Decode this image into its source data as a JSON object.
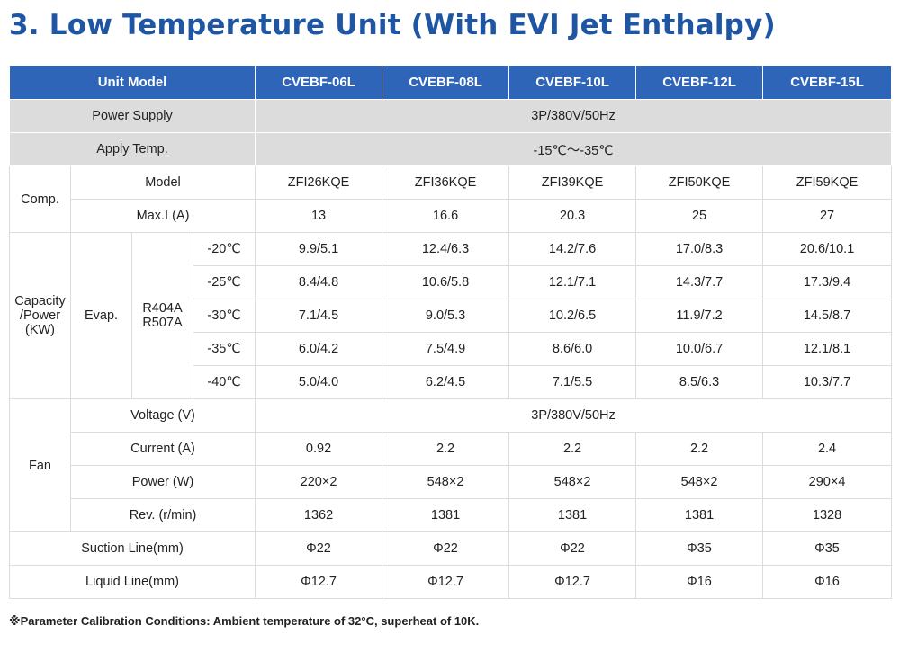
{
  "title": "3. Low Temperature Unit (With EVI Jet Enthalpy)",
  "header": {
    "unit_model": "Unit Model",
    "models": [
      "CVEBF-06L",
      "CVEBF-08L",
      "CVEBF-10L",
      "CVEBF-12L",
      "CVEBF-15L"
    ]
  },
  "power_supply": {
    "label": "Power Supply",
    "value": "3P/380V/50Hz"
  },
  "apply_temp": {
    "label": "Apply Temp.",
    "value": "-15℃～-35℃"
  },
  "comp": {
    "label": "Comp.",
    "model": {
      "label": "Model",
      "values": [
        "ZFI26KQE",
        "ZFI36KQE",
        "ZFI39KQE",
        "ZFI50KQE",
        "ZFI59KQE"
      ]
    },
    "max_i": {
      "label": "Max.I (A)",
      "values": [
        "13",
        "16.6",
        "20.3",
        "25",
        "27"
      ]
    }
  },
  "capacity": {
    "label_line1": "Capacity",
    "label_line2": "/Power",
    "label_line3": "(KW)",
    "evap_label": "Evap.",
    "refrigerant_line1": "R404A",
    "refrigerant_line2": "R507A",
    "rows": [
      {
        "temp": "-20℃",
        "values": [
          "9.9/5.1",
          "12.4/6.3",
          "14.2/7.6",
          "17.0/8.3",
          "20.6/10.1"
        ]
      },
      {
        "temp": "-25℃",
        "values": [
          "8.4/4.8",
          "10.6/5.8",
          "12.1/7.1",
          "14.3/7.7",
          "17.3/9.4"
        ]
      },
      {
        "temp": "-30℃",
        "values": [
          "7.1/4.5",
          "9.0/5.3",
          "10.2/6.5",
          "11.9/7.2",
          "14.5/8.7"
        ]
      },
      {
        "temp": "-35℃",
        "values": [
          "6.0/4.2",
          "7.5/4.9",
          "8.6/6.0",
          "10.0/6.7",
          "12.1/8.1"
        ]
      },
      {
        "temp": "-40℃",
        "values": [
          "5.0/4.0",
          "6.2/4.5",
          "7.1/5.5",
          "8.5/6.3",
          "10.3/7.7"
        ]
      }
    ]
  },
  "fan": {
    "label": "Fan",
    "voltage": {
      "label": "Voltage (V)",
      "value": "3P/380V/50Hz"
    },
    "current": {
      "label": "Current (A)",
      "values": [
        "0.92",
        "2.2",
        "2.2",
        "2.2",
        "2.4"
      ]
    },
    "power": {
      "label": "Power (W)",
      "values": [
        "220×2",
        "548×2",
        "548×2",
        "548×2",
        "290×4"
      ]
    },
    "rev": {
      "label": "Rev. (r/min)",
      "values": [
        "1362",
        "1381",
        "1381",
        "1381",
        "1328"
      ]
    }
  },
  "suction": {
    "label": "Suction Line(mm)",
    "values": [
      "Φ22",
      "Φ22",
      "Φ22",
      "Φ35",
      "Φ35"
    ]
  },
  "liquid": {
    "label": "Liquid Line(mm)",
    "values": [
      "Φ12.7",
      "Φ12.7",
      "Φ12.7",
      "Φ16",
      "Φ16"
    ]
  },
  "footnote": "※Parameter Calibration Conditions: Ambient temperature of 32°C, superheat of 10K.",
  "colors": {
    "title": "#1f56a3",
    "header_bg": "#2e65b8",
    "shaded_row": "#dcdcdc"
  }
}
